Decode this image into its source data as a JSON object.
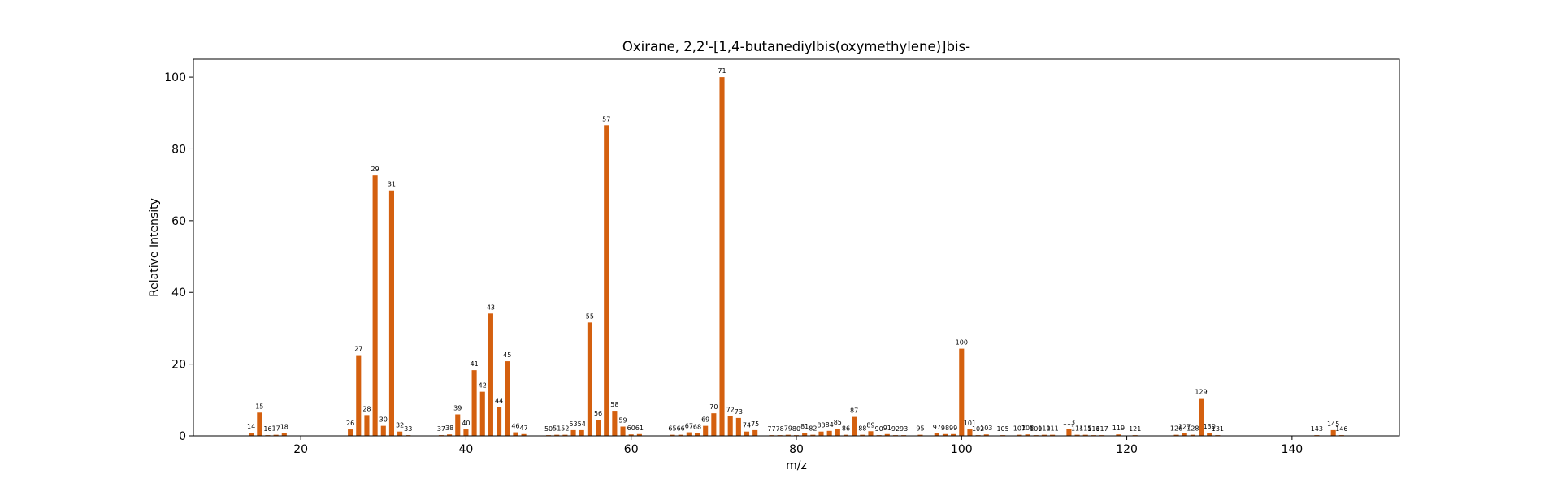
{
  "chart_data": {
    "type": "bar",
    "title": "Oxirane, 2,2'-[1,4-butanediylbis(oxymethylene)]bis-",
    "xlabel": "m/z",
    "ylabel": "Relative Intensity",
    "xlim": [
      7,
      153
    ],
    "ylim": [
      0,
      105
    ],
    "xticks": [
      20,
      40,
      60,
      80,
      100,
      120,
      140
    ],
    "yticks": [
      0,
      20,
      40,
      60,
      80,
      100
    ],
    "grid": false,
    "bar_color": "#d4600f",
    "peaks": [
      {
        "mz": 14,
        "intensity": 0.9
      },
      {
        "mz": 15,
        "intensity": 6.5
      },
      {
        "mz": 16,
        "intensity": 0.2
      },
      {
        "mz": 17,
        "intensity": 0.3
      },
      {
        "mz": 18,
        "intensity": 0.8
      },
      {
        "mz": 26,
        "intensity": 1.8
      },
      {
        "mz": 27,
        "intensity": 22.5
      },
      {
        "mz": 28,
        "intensity": 5.8
      },
      {
        "mz": 29,
        "intensity": 72.6
      },
      {
        "mz": 30,
        "intensity": 2.8
      },
      {
        "mz": 31,
        "intensity": 68.4
      },
      {
        "mz": 32,
        "intensity": 1.2
      },
      {
        "mz": 33,
        "intensity": 0.2
      },
      {
        "mz": 37,
        "intensity": 0.2
      },
      {
        "mz": 38,
        "intensity": 0.4
      },
      {
        "mz": 39,
        "intensity": 6.0
      },
      {
        "mz": 40,
        "intensity": 1.8
      },
      {
        "mz": 41,
        "intensity": 18.3
      },
      {
        "mz": 42,
        "intensity": 12.3
      },
      {
        "mz": 43,
        "intensity": 34.1
      },
      {
        "mz": 44,
        "intensity": 8.0
      },
      {
        "mz": 45,
        "intensity": 20.8
      },
      {
        "mz": 46,
        "intensity": 1.0
      },
      {
        "mz": 47,
        "intensity": 0.5
      },
      {
        "mz": 50,
        "intensity": 0.2
      },
      {
        "mz": 51,
        "intensity": 0.3
      },
      {
        "mz": 52,
        "intensity": 0.3
      },
      {
        "mz": 53,
        "intensity": 1.6
      },
      {
        "mz": 54,
        "intensity": 1.6
      },
      {
        "mz": 55,
        "intensity": 31.6
      },
      {
        "mz": 56,
        "intensity": 4.5
      },
      {
        "mz": 57,
        "intensity": 86.6
      },
      {
        "mz": 58,
        "intensity": 7.0
      },
      {
        "mz": 59,
        "intensity": 2.6
      },
      {
        "mz": 60,
        "intensity": 0.4
      },
      {
        "mz": 61,
        "intensity": 0.5
      },
      {
        "mz": 65,
        "intensity": 0.3
      },
      {
        "mz": 66,
        "intensity": 0.3
      },
      {
        "mz": 67,
        "intensity": 1.0
      },
      {
        "mz": 68,
        "intensity": 0.8
      },
      {
        "mz": 69,
        "intensity": 2.8
      },
      {
        "mz": 70,
        "intensity": 6.3
      },
      {
        "mz": 71,
        "intensity": 100.0
      },
      {
        "mz": 72,
        "intensity": 5.6
      },
      {
        "mz": 73,
        "intensity": 5.0
      },
      {
        "mz": 74,
        "intensity": 1.2
      },
      {
        "mz": 75,
        "intensity": 1.6
      },
      {
        "mz": 77,
        "intensity": 0.2
      },
      {
        "mz": 78,
        "intensity": 0.2
      },
      {
        "mz": 79,
        "intensity": 0.3
      },
      {
        "mz": 80,
        "intensity": 0.2
      },
      {
        "mz": 81,
        "intensity": 0.9
      },
      {
        "mz": 82,
        "intensity": 0.3
      },
      {
        "mz": 83,
        "intensity": 1.2
      },
      {
        "mz": 84,
        "intensity": 1.4
      },
      {
        "mz": 85,
        "intensity": 2.0
      },
      {
        "mz": 86,
        "intensity": 0.3
      },
      {
        "mz": 87,
        "intensity": 5.3
      },
      {
        "mz": 88,
        "intensity": 0.3
      },
      {
        "mz": 89,
        "intensity": 1.3
      },
      {
        "mz": 90,
        "intensity": 0.2
      },
      {
        "mz": 91,
        "intensity": 0.5
      },
      {
        "mz": 92,
        "intensity": 0.2
      },
      {
        "mz": 93,
        "intensity": 0.2
      },
      {
        "mz": 95,
        "intensity": 0.3
      },
      {
        "mz": 97,
        "intensity": 0.7
      },
      {
        "mz": 98,
        "intensity": 0.5
      },
      {
        "mz": 99,
        "intensity": 0.5
      },
      {
        "mz": 100,
        "intensity": 24.3
      },
      {
        "mz": 101,
        "intensity": 1.8
      },
      {
        "mz": 102,
        "intensity": 0.2
      },
      {
        "mz": 103,
        "intensity": 0.4
      },
      {
        "mz": 105,
        "intensity": 0.2
      },
      {
        "mz": 107,
        "intensity": 0.3
      },
      {
        "mz": 108,
        "intensity": 0.4
      },
      {
        "mz": 109,
        "intensity": 0.2
      },
      {
        "mz": 110,
        "intensity": 0.3
      },
      {
        "mz": 111,
        "intensity": 0.3
      },
      {
        "mz": 113,
        "intensity": 2.0
      },
      {
        "mz": 114,
        "intensity": 0.3
      },
      {
        "mz": 115,
        "intensity": 0.3
      },
      {
        "mz": 116,
        "intensity": 0.2
      },
      {
        "mz": 117,
        "intensity": 0.2
      },
      {
        "mz": 119,
        "intensity": 0.4
      },
      {
        "mz": 121,
        "intensity": 0.2
      },
      {
        "mz": 126,
        "intensity": 0.3
      },
      {
        "mz": 127,
        "intensity": 0.8
      },
      {
        "mz": 128,
        "intensity": 0.3
      },
      {
        "mz": 129,
        "intensity": 10.5
      },
      {
        "mz": 130,
        "intensity": 0.9
      },
      {
        "mz": 131,
        "intensity": 0.2
      },
      {
        "mz": 143,
        "intensity": 0.2
      },
      {
        "mz": 145,
        "intensity": 1.6
      },
      {
        "mz": 146,
        "intensity": 0.2
      }
    ]
  }
}
